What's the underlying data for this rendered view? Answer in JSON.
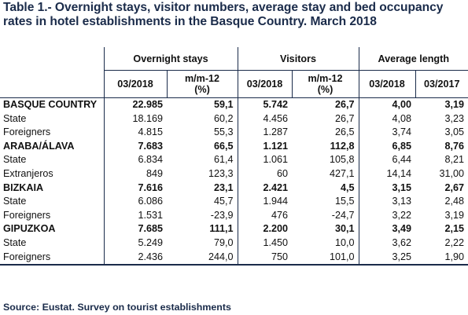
{
  "title": "Table 1.- Overnight stays, visitor numbers, average stay and bed occupancy rates in hotel establishments in the Basque Country. March 2018",
  "headers": {
    "group_overnight": "Overnight stays",
    "group_visitors": "Visitors",
    "group_average": "Average length",
    "col_0318_a": "03/2018",
    "col_mm12_a": "m/m-12 (%)",
    "col_0318_b": "03/2018",
    "col_mm12_b": "m/m-12 (%)",
    "col_0318_c": "03/2018",
    "col_0317_c": "03/2017"
  },
  "rows": [
    {
      "label": "BASQUE COUNTRY",
      "v": [
        "22.985",
        "59,1",
        "5.742",
        "26,7",
        "4,00",
        "3,19"
      ]
    },
    {
      "label": "State",
      "v": [
        "18.169",
        "60,2",
        "4.456",
        "26,7",
        "4,08",
        "3,23"
      ]
    },
    {
      "label": "Foreigners",
      "v": [
        "4.815",
        "55,3",
        "1.287",
        "26,5",
        "3,74",
        "3,05"
      ]
    },
    {
      "label": "ARABA/ÁLAVA",
      "v": [
        "7.683",
        "66,5",
        "1.121",
        "112,8",
        "6,85",
        "8,76"
      ]
    },
    {
      "label": "State",
      "v": [
        "6.834",
        "61,4",
        "1.061",
        "105,8",
        "6,44",
        "8,21"
      ]
    },
    {
      "label": "Extranjeros",
      "v": [
        "849",
        "123,3",
        "60",
        "427,1",
        "14,14",
        "31,00"
      ]
    },
    {
      "label": "BIZKAIA",
      "v": [
        "7.616",
        "23,1",
        "2.421",
        "4,5",
        "3,15",
        "2,67"
      ]
    },
    {
      "label": "State",
      "v": [
        "6.086",
        "45,7",
        "1.944",
        "15,5",
        "3,13",
        "2,48"
      ]
    },
    {
      "label": "Foreigners",
      "v": [
        "1.531",
        "-23,9",
        "476",
        "-24,7",
        "3,22",
        "3,19"
      ]
    },
    {
      "label": "GIPUZKOA",
      "v": [
        "7.685",
        "111,1",
        "2.200",
        "30,1",
        "3,49",
        "2,15"
      ]
    },
    {
      "label": "State",
      "v": [
        "5.249",
        "79,0",
        "1.450",
        "10,0",
        "3,62",
        "2,22"
      ]
    },
    {
      "label": "Foreigners",
      "v": [
        "2.436",
        "244,0",
        "750",
        "101,0",
        "3,25",
        "1,90"
      ]
    }
  ],
  "source": "Source: Eustat. Survey on tourist establishments"
}
